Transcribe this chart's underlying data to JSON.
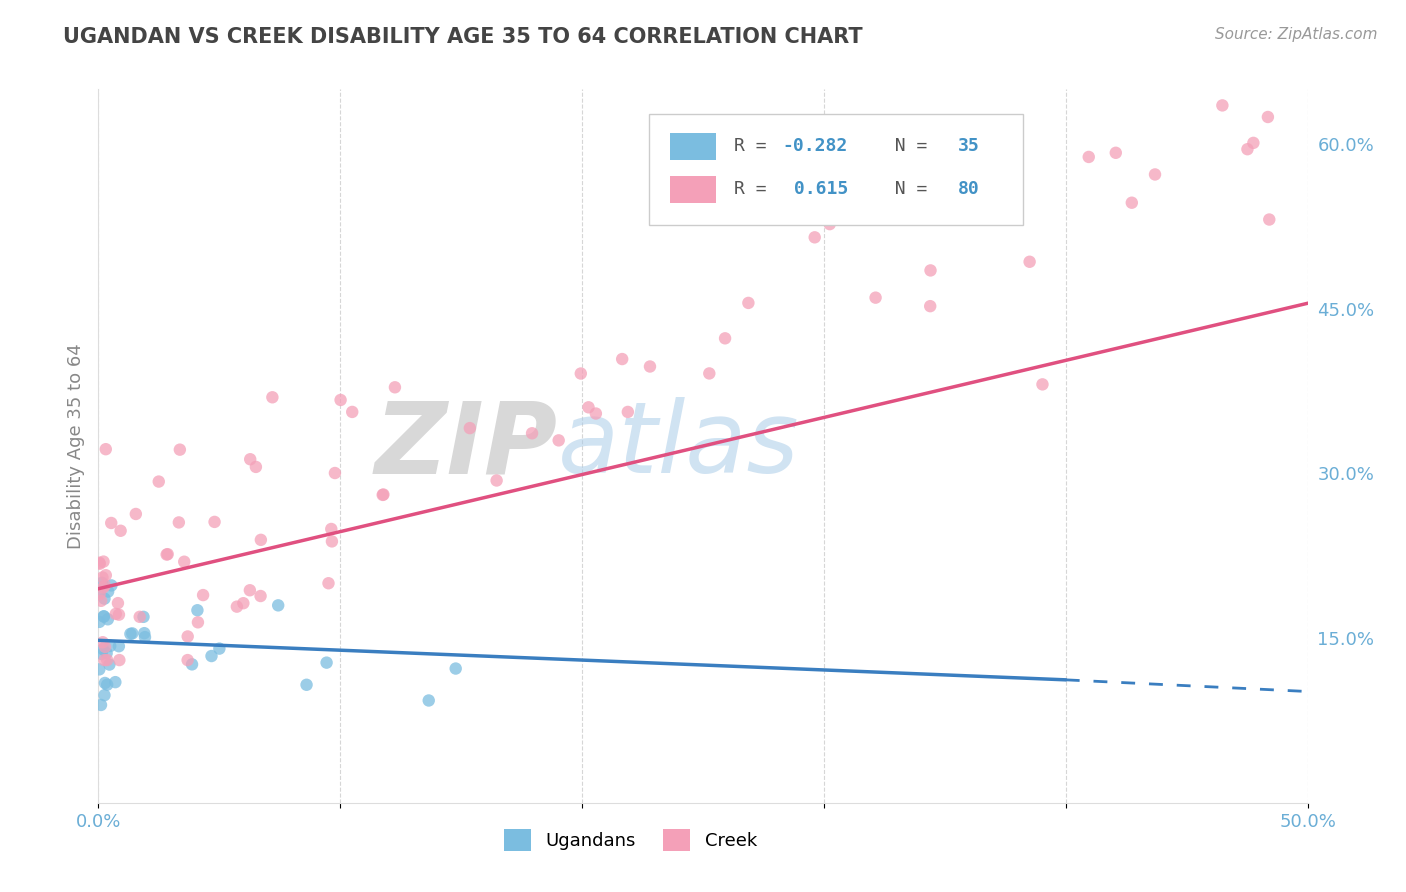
{
  "title": "UGANDAN VS CREEK DISABILITY AGE 35 TO 64 CORRELATION CHART",
  "source_text": "Source: ZipAtlas.com",
  "ylabel": "Disability Age 35 to 64",
  "xlim": [
    0.0,
    0.5
  ],
  "ylim": [
    0.0,
    0.65
  ],
  "x_ticks": [
    0.0,
    0.1,
    0.2,
    0.3,
    0.4,
    0.5
  ],
  "x_tick_labels": [
    "0.0%",
    "",
    "",
    "",
    "",
    "50.0%"
  ],
  "y_ticks": [
    0.15,
    0.3,
    0.45,
    0.6
  ],
  "y_tick_labels": [
    "15.0%",
    "30.0%",
    "45.0%",
    "60.0%"
  ],
  "ugandan_color": "#7bbde0",
  "creek_color": "#f4a0b8",
  "ugandan_line_color": "#3a7ec0",
  "creek_line_color": "#e05080",
  "ugandan_R": -0.282,
  "ugandan_N": 35,
  "creek_R": 0.615,
  "creek_N": 80,
  "background_color": "#ffffff",
  "grid_color": "#cccccc",
  "title_color": "#444444",
  "tick_color": "#6baed6",
  "watermark_ZIP_color": "#c0c0c0",
  "watermark_atlas_color": "#aacce8",
  "legend_R_color": "#4292c6",
  "legend_N_color": "#4292c6",
  "legend_label_color": "#555555"
}
